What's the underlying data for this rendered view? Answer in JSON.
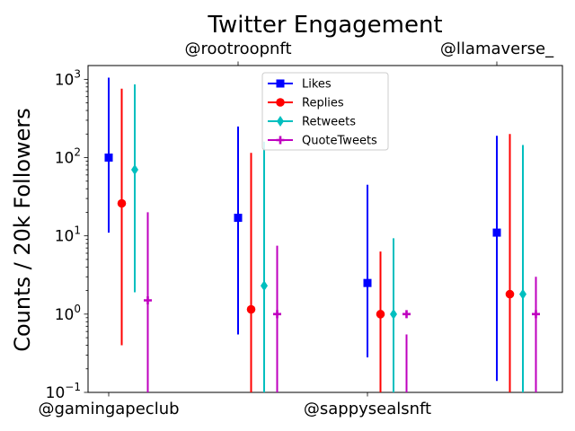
{
  "chart_data": {
    "type": "scatter",
    "title": "Twitter Engagement",
    "ylabel": "Counts / 20k Followers",
    "xlabel": "",
    "yscale": "log",
    "ylim": [
      0.1,
      1500
    ],
    "yticks": [
      {
        "value": 0.1,
        "base": "10",
        "exp": "−1"
      },
      {
        "value": 1,
        "base": "10",
        "exp": "0"
      },
      {
        "value": 10,
        "base": "10",
        "exp": "1"
      },
      {
        "value": 100,
        "base": "10",
        "exp": "2"
      },
      {
        "value": 1000,
        "base": "10",
        "exp": "3"
      }
    ],
    "categories": [
      "@gamingapeclub",
      "@rootroopnft",
      "@sappysealsnft",
      "@llamaverse_"
    ],
    "bottom_axis_labels": [
      "@gamingapeclub",
      "@sappysealsnft"
    ],
    "top_axis_labels": [
      "@rootroopnft",
      "@llamaverse_"
    ],
    "legend_position": "upper center",
    "grid": false,
    "series": [
      {
        "name": "Likes",
        "color": "#0000ff",
        "marker": "square",
        "values": [
          100,
          17,
          2.5,
          11
        ],
        "err_low": [
          11,
          0.55,
          0.28,
          0.14
        ],
        "err_high": [
          1050,
          250,
          45,
          190
        ]
      },
      {
        "name": "Replies",
        "color": "#ff0000",
        "marker": "circle",
        "values": [
          26,
          1.15,
          1.0,
          1.8
        ],
        "err_low": [
          0.4,
          0.05,
          0.05,
          0.05
        ],
        "err_high": [
          760,
          115,
          6.3,
          200
        ]
      },
      {
        "name": "Retweets",
        "color": "#00bfbf",
        "marker": "diamond",
        "values": [
          70,
          2.3,
          1.0,
          1.8
        ],
        "err_low": [
          1.9,
          0.05,
          0.05,
          0.05
        ],
        "err_high": [
          860,
          160,
          9.3,
          145
        ]
      },
      {
        "name": "QuoteTweets",
        "color": "#bf00bf",
        "marker": "plus",
        "values": [
          1.5,
          1.0,
          1.0,
          1.0
        ],
        "err_low": [
          0.05,
          0.05,
          0.05,
          0.05
        ],
        "err_high": [
          20,
          7.5,
          0.55,
          3.0
        ]
      }
    ]
  }
}
